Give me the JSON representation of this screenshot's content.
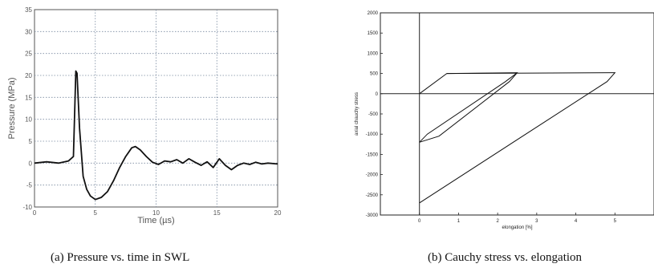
{
  "chart_data": [
    {
      "type": "line",
      "title": "",
      "xlabel": "Time (µs)",
      "ylabel": "Pressure (MPa)",
      "xlim": [
        0,
        20
      ],
      "ylim": [
        -10,
        35
      ],
      "xticks": [
        "0",
        "5",
        "10",
        "15",
        "20"
      ],
      "yticks": [
        "-10",
        "-5",
        "0",
        "5",
        "10",
        "15",
        "20",
        "25",
        "30",
        "35"
      ],
      "grid": true,
      "series": [
        {
          "x": [
            0,
            1,
            2,
            2.8,
            3.2,
            3.4,
            3.5,
            3.7,
            4.0,
            4.3,
            4.6,
            5.0,
            5.5,
            6.0,
            6.5,
            7.0,
            7.5,
            8.0,
            8.3,
            8.7,
            9.2,
            9.7,
            10.2,
            10.7,
            11.2,
            11.7,
            12.2,
            12.7,
            13.2,
            13.7,
            14.2,
            14.7,
            15.2,
            15.7,
            16.2,
            16.7,
            17.2,
            17.7,
            18.2,
            18.7,
            19.2,
            20.0
          ],
          "y": [
            0,
            0.3,
            0,
            0.5,
            1.5,
            21.0,
            20.5,
            8.0,
            -3.0,
            -6.0,
            -7.5,
            -8.3,
            -7.8,
            -6.5,
            -4.0,
            -1.0,
            1.5,
            3.5,
            3.8,
            3.0,
            1.5,
            0.2,
            -0.3,
            0.5,
            0.3,
            0.8,
            0.0,
            1.0,
            0.2,
            -0.5,
            0.3,
            -1.0,
            1.0,
            -0.5,
            -1.5,
            -0.5,
            0.0,
            -0.3,
            0.2,
            -0.2,
            0.0,
            -0.2
          ]
        }
      ]
    },
    {
      "type": "line",
      "title": "",
      "xlabel": "elongation [%]",
      "ylabel": "axial chauchy stress",
      "xlim": [
        -1,
        6
      ],
      "ylim": [
        -3000,
        2000
      ],
      "xticks": [
        "0",
        "1",
        "2",
        "3",
        "4",
        "5"
      ],
      "yticks": [
        "-3000",
        "-2500",
        "-2000",
        "-1500",
        "-1000",
        "-500",
        "0",
        "500",
        "1000",
        "1500",
        "2000"
      ],
      "grid": false,
      "series": [
        {
          "x": [
            0,
            0.7,
            2.5,
            2.3,
            0.5,
            0.0
          ],
          "y": [
            0,
            500,
            520,
            300,
            -1050,
            -1200
          ]
        },
        {
          "x": [
            0.0,
            0.2,
            2.2,
            2.5
          ],
          "y": [
            -1200,
            -1000,
            300,
            520
          ]
        },
        {
          "x": [
            0.7,
            5.0,
            4.8,
            0.0
          ],
          "y": [
            500,
            520,
            300,
            -2700
          ]
        }
      ]
    }
  ],
  "captions": {
    "a": "(a) Pressure vs. time in SWL",
    "b": "(b) Cauchy stress vs. elongation"
  }
}
